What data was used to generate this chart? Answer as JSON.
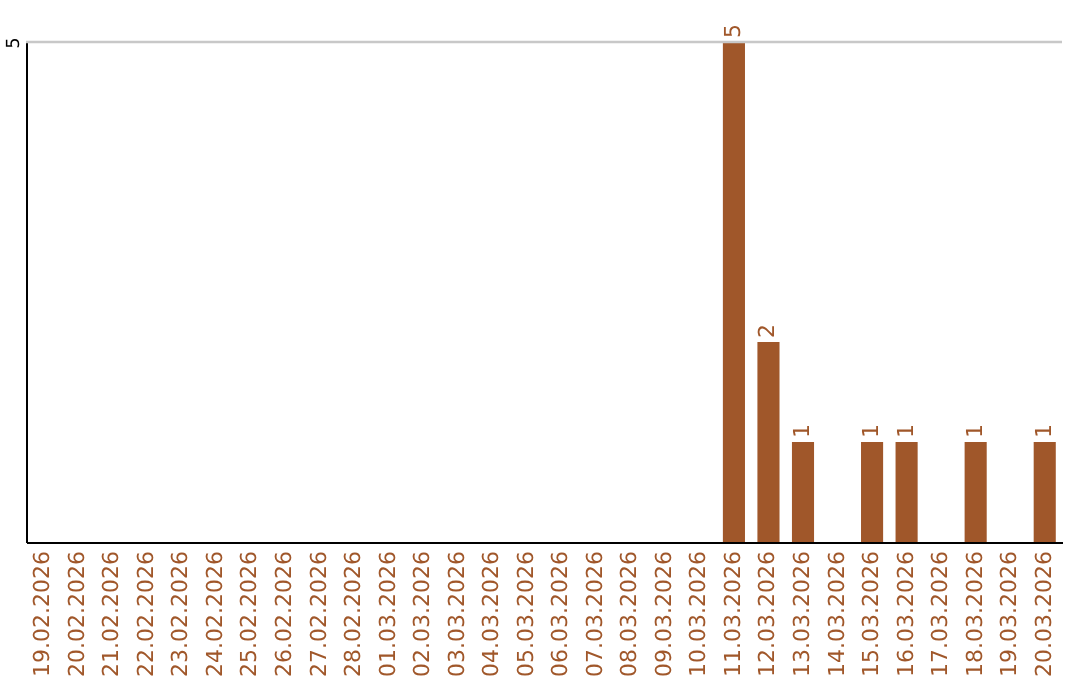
{
  "chart_data": {
    "type": "bar",
    "categories": [
      "19.02.2026",
      "20.02.2026",
      "21.02.2026",
      "22.02.2026",
      "23.02.2026",
      "24.02.2026",
      "25.02.2026",
      "26.02.2026",
      "27.02.2026",
      "28.02.2026",
      "01.03.2026",
      "02.03.2026",
      "03.03.2026",
      "04.03.2026",
      "05.03.2026",
      "06.03.2026",
      "07.03.2026",
      "08.03.2026",
      "09.03.2026",
      "10.03.2026",
      "11.03.2026",
      "12.03.2026",
      "13.03.2026",
      "14.03.2026",
      "15.03.2026",
      "16.03.2026",
      "17.03.2026",
      "18.03.2026",
      "19.03.2026",
      "20.03.2026"
    ],
    "values": [
      null,
      null,
      null,
      null,
      null,
      null,
      null,
      null,
      null,
      null,
      null,
      null,
      null,
      null,
      null,
      null,
      null,
      null,
      null,
      null,
      5,
      2,
      1,
      null,
      1,
      1,
      null,
      1,
      null,
      1
    ],
    "data_labels": true,
    "color": "#a0572a",
    "ylim": [
      0,
      5
    ],
    "yticks": [
      5
    ],
    "ref_lines": [
      {
        "axis": "y",
        "value": 5,
        "color": "#c8c8c8"
      }
    ]
  }
}
